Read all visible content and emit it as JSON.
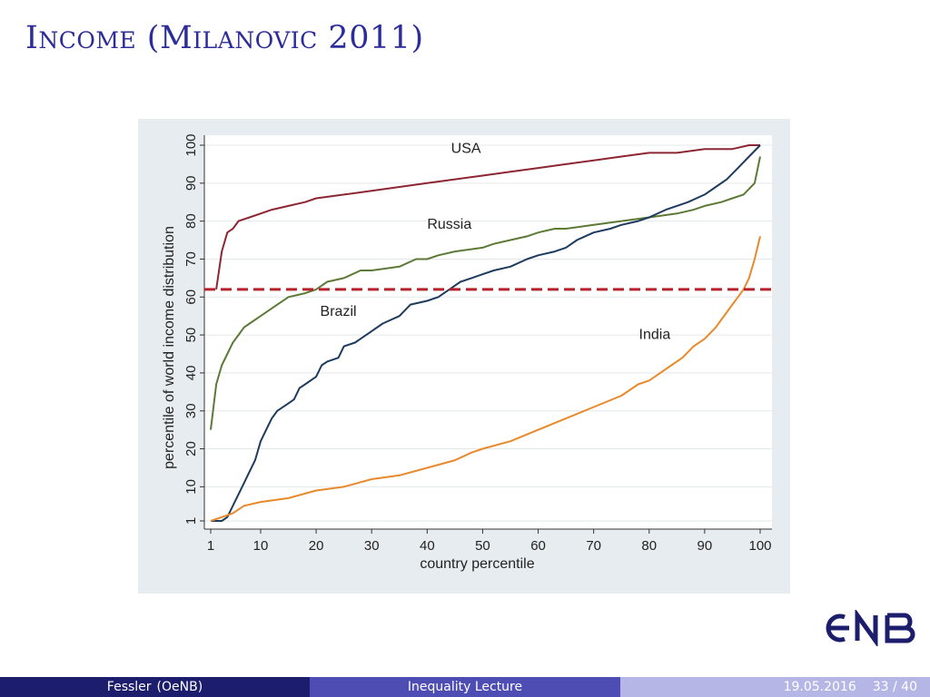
{
  "slide": {
    "title": "Income (Milanovic 2011)",
    "footer": {
      "author": "Fessler",
      "institute": "(OeNB)",
      "title": "Inequality Lecture",
      "date": "19.05.2016",
      "page": "33 / 40"
    },
    "logo_text": "ONB",
    "colors": {
      "title": "#2c2c9a",
      "footer_dark": "#1d1d6e",
      "footer_mid": "#4d4db3",
      "footer_light": "#b6b6e6",
      "panel_background": "#e6ecef",
      "logo": "#1d1d6e"
    }
  },
  "chart_data": {
    "type": "line",
    "xlabel": "country percentile",
    "ylabel": "percentile of world income distribution",
    "xlim": [
      1,
      100
    ],
    "ylim": [
      1,
      100
    ],
    "xticks": [
      1,
      10,
      20,
      30,
      40,
      50,
      60,
      70,
      80,
      90,
      100
    ],
    "yticks": [
      1,
      10,
      20,
      30,
      40,
      50,
      60,
      70,
      80,
      90,
      100
    ],
    "grid": true,
    "series": [
      {
        "name": "USA",
        "color": "#8c2632",
        "points": [
          [
            2,
            62
          ],
          [
            3,
            72
          ],
          [
            4,
            77
          ],
          [
            5,
            78
          ],
          [
            6,
            80
          ],
          [
            8,
            81
          ],
          [
            10,
            82
          ],
          [
            12,
            83
          ],
          [
            15,
            84
          ],
          [
            18,
            85
          ],
          [
            20,
            86
          ],
          [
            25,
            87
          ],
          [
            30,
            88
          ],
          [
            35,
            89
          ],
          [
            40,
            90
          ],
          [
            45,
            91
          ],
          [
            50,
            92
          ],
          [
            55,
            93
          ],
          [
            60,
            94
          ],
          [
            65,
            95
          ],
          [
            70,
            96
          ],
          [
            75,
            97
          ],
          [
            80,
            98
          ],
          [
            85,
            98
          ],
          [
            90,
            99
          ],
          [
            95,
            99
          ],
          [
            98,
            100
          ],
          [
            100,
            100
          ]
        ]
      },
      {
        "name": "Russia",
        "color": "#5c7a36",
        "points": [
          [
            1,
            25
          ],
          [
            2,
            37
          ],
          [
            3,
            42
          ],
          [
            4,
            45
          ],
          [
            5,
            48
          ],
          [
            6,
            50
          ],
          [
            7,
            52
          ],
          [
            8,
            53
          ],
          [
            10,
            55
          ],
          [
            12,
            57
          ],
          [
            15,
            60
          ],
          [
            18,
            61
          ],
          [
            20,
            62
          ],
          [
            22,
            64
          ],
          [
            25,
            65
          ],
          [
            28,
            67
          ],
          [
            30,
            67
          ],
          [
            35,
            68
          ],
          [
            38,
            70
          ],
          [
            40,
            70
          ],
          [
            42,
            71
          ],
          [
            45,
            72
          ],
          [
            50,
            73
          ],
          [
            52,
            74
          ],
          [
            55,
            75
          ],
          [
            58,
            76
          ],
          [
            60,
            77
          ],
          [
            63,
            78
          ],
          [
            65,
            78
          ],
          [
            70,
            79
          ],
          [
            75,
            80
          ],
          [
            80,
            81
          ],
          [
            85,
            82
          ],
          [
            88,
            83
          ],
          [
            90,
            84
          ],
          [
            93,
            85
          ],
          [
            95,
            86
          ],
          [
            97,
            87
          ],
          [
            99,
            90
          ],
          [
            100,
            97
          ]
        ]
      },
      {
        "name": "Brazil",
        "color": "#1e3b5e",
        "points": [
          [
            1,
            1
          ],
          [
            3,
            1
          ],
          [
            4,
            2
          ],
          [
            5,
            5
          ],
          [
            6,
            8
          ],
          [
            7,
            11
          ],
          [
            8,
            14
          ],
          [
            9,
            17
          ],
          [
            10,
            22
          ],
          [
            11,
            25
          ],
          [
            12,
            28
          ],
          [
            13,
            30
          ],
          [
            15,
            32
          ],
          [
            16,
            33
          ],
          [
            17,
            36
          ],
          [
            18,
            37
          ],
          [
            20,
            39
          ],
          [
            21,
            42
          ],
          [
            22,
            43
          ],
          [
            24,
            44
          ],
          [
            25,
            47
          ],
          [
            27,
            48
          ],
          [
            28,
            49
          ],
          [
            30,
            51
          ],
          [
            32,
            53
          ],
          [
            35,
            55
          ],
          [
            37,
            58
          ],
          [
            40,
            59
          ],
          [
            42,
            60
          ],
          [
            44,
            62
          ],
          [
            46,
            64
          ],
          [
            48,
            65
          ],
          [
            50,
            66
          ],
          [
            52,
            67
          ],
          [
            55,
            68
          ],
          [
            58,
            70
          ],
          [
            60,
            71
          ],
          [
            63,
            72
          ],
          [
            65,
            73
          ],
          [
            67,
            75
          ],
          [
            70,
            77
          ],
          [
            73,
            78
          ],
          [
            75,
            79
          ],
          [
            78,
            80
          ],
          [
            80,
            81
          ],
          [
            83,
            83
          ],
          [
            85,
            84
          ],
          [
            87,
            85
          ],
          [
            90,
            87
          ],
          [
            92,
            89
          ],
          [
            94,
            91
          ],
          [
            96,
            94
          ],
          [
            98,
            97
          ],
          [
            100,
            100
          ]
        ]
      },
      {
        "name": "India",
        "color": "#e8892c",
        "points": [
          [
            1,
            1
          ],
          [
            3,
            2
          ],
          [
            5,
            3
          ],
          [
            7,
            5
          ],
          [
            10,
            6
          ],
          [
            15,
            7
          ],
          [
            20,
            9
          ],
          [
            25,
            10
          ],
          [
            30,
            12
          ],
          [
            35,
            13
          ],
          [
            40,
            15
          ],
          [
            45,
            17
          ],
          [
            48,
            19
          ],
          [
            50,
            20
          ],
          [
            55,
            22
          ],
          [
            60,
            25
          ],
          [
            65,
            28
          ],
          [
            70,
            31
          ],
          [
            75,
            34
          ],
          [
            78,
            37
          ],
          [
            80,
            38
          ],
          [
            82,
            40
          ],
          [
            84,
            42
          ],
          [
            86,
            44
          ],
          [
            88,
            47
          ],
          [
            90,
            49
          ],
          [
            92,
            52
          ],
          [
            94,
            56
          ],
          [
            95,
            58
          ],
          [
            96,
            60
          ],
          [
            97,
            62
          ],
          [
            98,
            65
          ],
          [
            99,
            70
          ],
          [
            100,
            76
          ]
        ]
      }
    ],
    "reference_line": {
      "y": 62,
      "style": "dashed",
      "color": "#b8202a"
    }
  }
}
